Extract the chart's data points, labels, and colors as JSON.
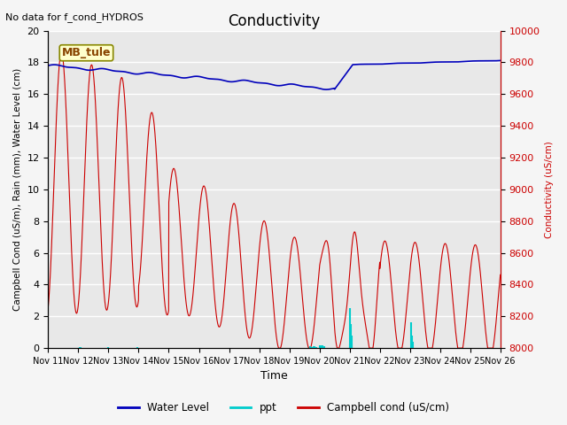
{
  "title": "Conductivity",
  "top_left_text": "No data for f_cond_HYDROS",
  "annotation_box": "MB_tule",
  "xlabel": "Time",
  "ylabel_left": "Campbell Cond (uS/m), Rain (mm), Water Level (cm)",
  "ylabel_right": "Conductivity (uS/cm)",
  "ylim_left": [
    0,
    20
  ],
  "ylim_right": [
    8000,
    10000
  ],
  "yticks_left": [
    0,
    2,
    4,
    6,
    8,
    10,
    12,
    14,
    16,
    18,
    20
  ],
  "yticks_right": [
    8000,
    8200,
    8400,
    8600,
    8800,
    9000,
    9200,
    9400,
    9600,
    9800,
    10000
  ],
  "x_tick_labels": [
    "Nov 11",
    "Nov 12",
    "Nov 13",
    "Nov 14",
    "Nov 15",
    "Nov 16",
    "Nov 17",
    "Nov 18",
    "Nov 19",
    "Nov 20",
    "Nov 21",
    "Nov 22",
    "Nov 23",
    "Nov 24",
    "Nov 25",
    "Nov 26"
  ],
  "x_tick_positions": [
    0,
    1,
    2,
    3,
    4,
    5,
    6,
    7,
    8,
    9,
    10,
    11,
    12,
    13,
    14,
    15
  ],
  "plot_bg_color": "#e8e8e8",
  "fig_bg_color": "#f5f5f5",
  "grid_color": "#ffffff",
  "water_level_color": "#0000bb",
  "ppt_color": "#00cccc",
  "campbell_color": "#cc0000",
  "right_ylabel_color": "#cc0000",
  "legend_entries": [
    "Water Level",
    "ppt",
    "Campbell cond (uS/cm)"
  ],
  "annotation_facecolor": "#ffffcc",
  "annotation_edgecolor": "#888800",
  "annotation_textcolor": "#884400"
}
